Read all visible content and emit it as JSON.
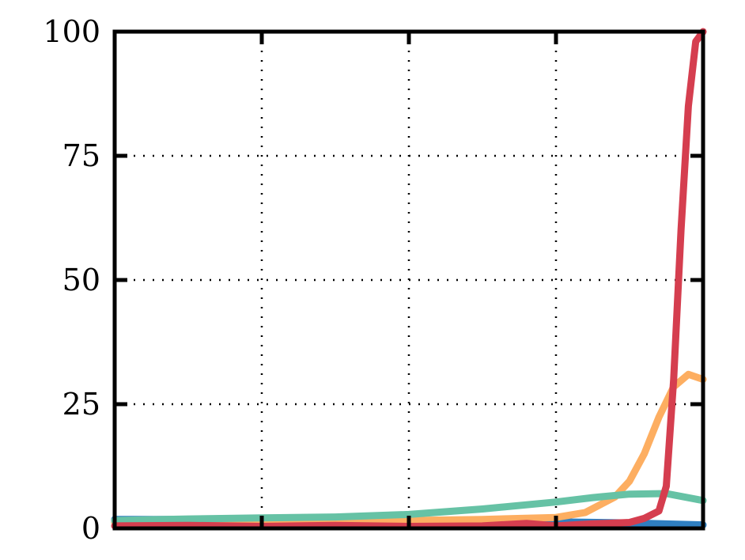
{
  "chart_data": {
    "type": "line",
    "title": "",
    "xlabel": "",
    "ylabel": "",
    "xlim": [
      0,
      4
    ],
    "ylim": [
      0,
      100
    ],
    "y_ticks": [
      0,
      25,
      50,
      75,
      100
    ],
    "y_tick_labels": [
      "0",
      "25",
      "50",
      "75",
      "100"
    ],
    "x_ticks": [
      0,
      1,
      2,
      3,
      4
    ],
    "x_tick_labels": [],
    "grid": "dotted",
    "legend": "none",
    "series": [
      {
        "color": "#2f7fc1",
        "x": [
          0,
          0.5,
          1,
          1.5,
          2,
          2.5,
          3,
          3.5,
          4
        ],
        "values": [
          1.8,
          1.8,
          1.7,
          1.6,
          1.5,
          1.4,
          1.3,
          1.1,
          0.7
        ]
      },
      {
        "color": "#fdae61",
        "x": [
          0,
          0.5,
          1,
          1.5,
          2,
          2.5,
          3,
          3.2,
          3.4,
          3.5,
          3.6,
          3.7,
          3.8,
          3.9,
          4
        ],
        "values": [
          1.2,
          1.3,
          1.4,
          1.5,
          1.6,
          1.8,
          2.2,
          3.2,
          6.3,
          9.5,
          15,
          22.4,
          28.5,
          31,
          30
        ]
      },
      {
        "color": "#66c2a5",
        "x": [
          0,
          0.5,
          1,
          1.5,
          2,
          2.5,
          3,
          3.25,
          3.5,
          3.75,
          4
        ],
        "values": [
          1.6,
          1.9,
          2.1,
          2.3,
          2.8,
          3.9,
          5.3,
          6.2,
          6.9,
          7.0,
          5.6
        ]
      },
      {
        "color": "#d53e4f",
        "x": [
          0,
          0.5,
          1,
          1.5,
          2,
          2.5,
          2.8,
          3,
          3.25,
          3.5,
          3.6,
          3.7,
          3.75,
          3.8,
          3.85,
          3.9,
          3.95,
          4
        ],
        "values": [
          0.5,
          0.6,
          0.4,
          0.6,
          0.4,
          0.5,
          1.0,
          0.5,
          0.9,
          1.2,
          2.0,
          3.5,
          8.5,
          30,
          60,
          85,
          98,
          100
        ]
      }
    ]
  }
}
